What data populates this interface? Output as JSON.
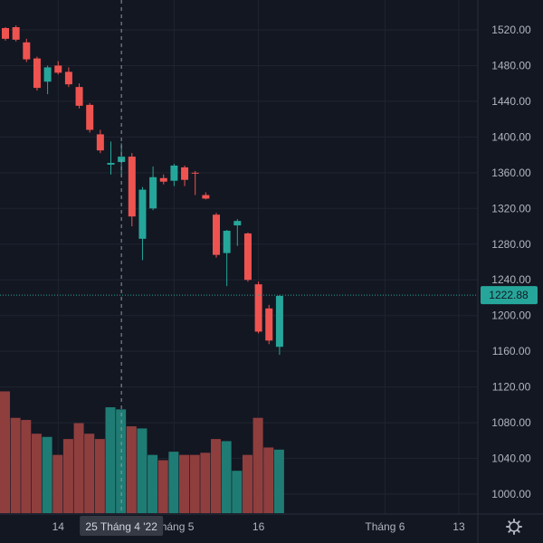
{
  "chart_data": {
    "type": "candlestick",
    "y_axis": {
      "position": "right",
      "range": [
        980,
        1540
      ],
      "ticks": [
        "1520.00",
        "1480.00",
        "1440.00",
        "1400.00",
        "1360.00",
        "1320.00",
        "1280.00",
        "1240.00",
        "1200.00",
        "1160.00",
        "1120.00",
        "1080.00",
        "1040.00",
        "1000.00"
      ],
      "tick_values": [
        1520,
        1480,
        1440,
        1400,
        1360,
        1320,
        1280,
        1240,
        1200,
        1160,
        1120,
        1080,
        1040,
        1000
      ]
    },
    "x_axis": {
      "labels": [
        {
          "text": "14",
          "index": 5
        },
        {
          "text": "Tháng 5",
          "index": 16
        },
        {
          "text": "16",
          "index": 24
        },
        {
          "text": "Tháng 6",
          "index": 36
        },
        {
          "text": "13",
          "index": 43
        }
      ]
    },
    "crosshair": {
      "index": 11,
      "label": "25 Tháng 4 '22"
    },
    "last_price": {
      "value": 1222.88,
      "label": "1222.88"
    },
    "grid": true,
    "colors": {
      "up": "#26a69a",
      "down": "#ef5350",
      "up_volume": "#1f7c74",
      "down_volume": "#8f3e3e",
      "grid": "#1f2430",
      "text": "#b2b5be",
      "crosshair": "#9598a1",
      "price_tag": "#26a69a"
    },
    "candles": [
      {
        "o": 1522,
        "h": 1523,
        "l": 1508,
        "c": 1510,
        "v": 115
      },
      {
        "o": 1523,
        "h": 1525,
        "l": 1507,
        "c": 1509,
        "v": 90
      },
      {
        "o": 1506,
        "h": 1510,
        "l": 1484,
        "c": 1487,
        "v": 88
      },
      {
        "o": 1488,
        "h": 1490,
        "l": 1452,
        "c": 1455,
        "v": 75
      },
      {
        "o": 1462,
        "h": 1480,
        "l": 1448,
        "c": 1478,
        "v": 72
      },
      {
        "o": 1480,
        "h": 1485,
        "l": 1470,
        "c": 1472,
        "v": 55
      },
      {
        "o": 1473,
        "h": 1478,
        "l": 1456,
        "c": 1459,
        "v": 70
      },
      {
        "o": 1456,
        "h": 1460,
        "l": 1432,
        "c": 1435,
        "v": 85
      },
      {
        "o": 1436,
        "h": 1438,
        "l": 1405,
        "c": 1408,
        "v": 75
      },
      {
        "o": 1403,
        "h": 1408,
        "l": 1382,
        "c": 1385,
        "v": 70
      },
      {
        "o": 1369,
        "h": 1395,
        "l": 1358,
        "c": 1371,
        "v": 100
      },
      {
        "o": 1372,
        "h": 1393,
        "l": 1358,
        "c": 1378,
        "v": 98
      },
      {
        "o": 1378,
        "h": 1382,
        "l": 1300,
        "c": 1311,
        "v": 82
      },
      {
        "o": 1286,
        "h": 1344,
        "l": 1262,
        "c": 1341,
        "v": 80
      },
      {
        "o": 1320,
        "h": 1367,
        "l": 1318,
        "c": 1355,
        "v": 55
      },
      {
        "o": 1354,
        "h": 1358,
        "l": 1347,
        "c": 1350,
        "v": 50
      },
      {
        "o": 1351,
        "h": 1370,
        "l": 1345,
        "c": 1368,
        "v": 58
      },
      {
        "o": 1366,
        "h": 1368,
        "l": 1345,
        "c": 1352,
        "v": 55
      },
      {
        "o": 1360,
        "h": 1362,
        "l": 1335,
        "c": 1359,
        "v": 55
      },
      {
        "o": 1335,
        "h": 1338,
        "l": 1330,
        "c": 1331,
        "v": 57
      },
      {
        "o": 1313,
        "h": 1315,
        "l": 1265,
        "c": 1268,
        "v": 70
      },
      {
        "o": 1270,
        "h": 1296,
        "l": 1233,
        "c": 1295,
        "v": 68
      },
      {
        "o": 1301,
        "h": 1308,
        "l": 1278,
        "c": 1306,
        "v": 40
      },
      {
        "o": 1292,
        "h": 1293,
        "l": 1238,
        "c": 1240,
        "v": 55
      },
      {
        "o": 1235,
        "h": 1238,
        "l": 1180,
        "c": 1182,
        "v": 90
      },
      {
        "o": 1208,
        "h": 1212,
        "l": 1168,
        "c": 1172,
        "v": 62
      },
      {
        "o": 1165,
        "h": 1223,
        "l": 1156,
        "c": 1222,
        "v": 60
      }
    ],
    "volume_axis": {
      "max": 120
    }
  },
  "toolbar": {
    "settings_icon": "gear-icon"
  }
}
